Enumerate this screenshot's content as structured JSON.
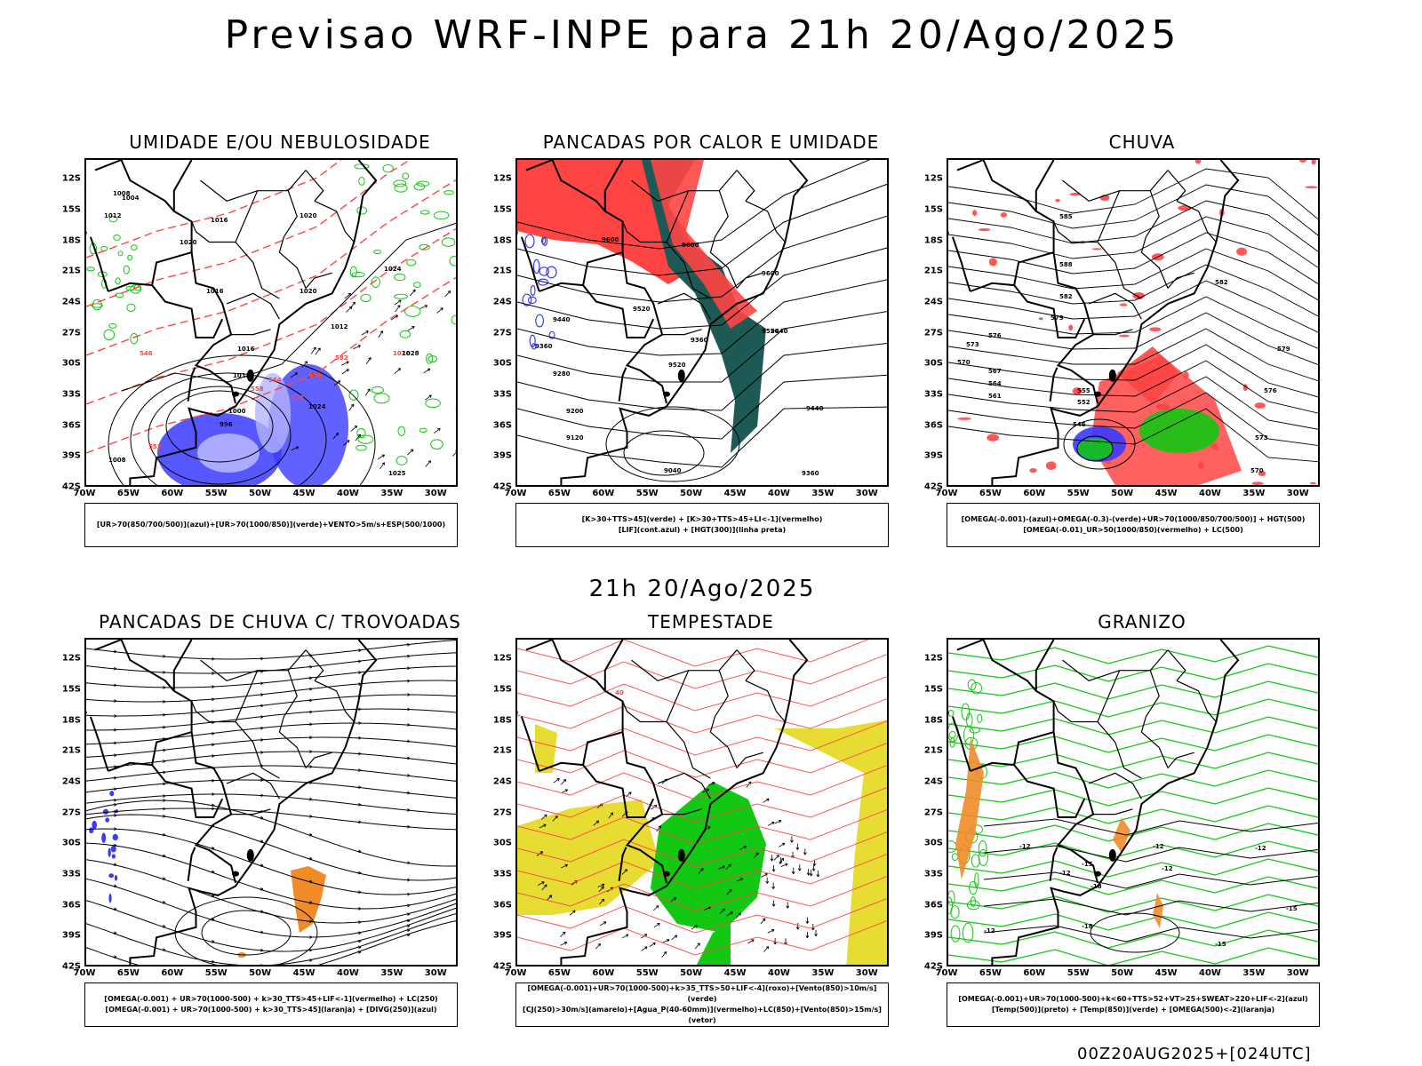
{
  "header": {
    "title": "Previsao WRF-INPE  para 21h 20/Ago/2025"
  },
  "mid_title": "21h 20/Ago/2025",
  "footer_stamp": "00Z20AUG2025+[024UTC]",
  "axes": {
    "lat_labels": [
      "12S",
      "15S",
      "18S",
      "21S",
      "24S",
      "27S",
      "30S",
      "33S",
      "36S",
      "39S",
      "42S"
    ],
    "lon_labels": [
      "70W",
      "65W",
      "60W",
      "55W",
      "50W",
      "45W",
      "40W",
      "35W",
      "30W"
    ]
  },
  "colors": {
    "red": "#ff4444",
    "blue": "#3a3aff",
    "green": "#12c812",
    "orange": "#f08c28",
    "yellow": "#e6dc32",
    "teal": "#1e5a55",
    "lightblue": "#b4b4ff"
  },
  "panels": [
    {
      "id": "umidade",
      "title": "UMIDADE E/OU NEBULOSIDADE",
      "legend": [
        "[UR>70(850/700/500)](azul)+[UR>70(1000/850)](verde)+VENTO>5m/s+ESP(500/1000)"
      ],
      "contour_labels": [
        "1008",
        "1012",
        "1016",
        "1020",
        "1020",
        "1024",
        "1016",
        "1020",
        "1012",
        "1012",
        "1000",
        "996",
        "1008",
        "1025",
        "1028",
        "582",
        "576",
        "570",
        "564",
        "558",
        "552",
        "546",
        "1004",
        "1016",
        "1024",
        "1028"
      ]
    },
    {
      "id": "pancadas-calor",
      "title": "PANCADAS POR CALOR E UMIDADE",
      "legend": [
        "[K>30+TTS>45](verde) + [K>30+TTS>45+LI<-1](vermelho)",
        "[LIF](cont.azul) + [HGT(300)](linha preta)"
      ],
      "contour_labels": [
        "9600",
        "9520",
        "9440",
        "9360",
        "9280",
        "9200",
        "9120",
        "9040",
        "9600",
        "9600",
        "9520",
        "9440",
        "9360",
        "9520",
        "9440",
        "9360"
      ]
    },
    {
      "id": "chuva",
      "title": "CHUVA",
      "legend": [
        "[OMEGA(-0.001)-(azul)+OMEGA(-0.3)-(verde)+UR>70(1000/850/700/500)] + HGT(500)",
        "[OMEGA(-0.01)_UR>50(1000/850)(vermelho) + LC(500)"
      ],
      "contour_labels": [
        "585",
        "588",
        "582",
        "579",
        "573",
        "570",
        "567",
        "564",
        "561",
        "555",
        "552",
        "546",
        "576",
        "579",
        "576",
        "573",
        "570",
        "582"
      ]
    },
    {
      "id": "pancadas-trovoadas",
      "title": "PANCADAS DE CHUVA C/ TROVOADAS",
      "legend": [
        "[OMEGA(-0.001) + UR>70(1000-500) + k>30_TTS>45+LIF<-1](vermelho) + LC(250)",
        "[OMEGA(-0.001) + UR>70(1000-500) + k>30_TTS>45](laranja) + [DIVG(250)](azul)"
      ],
      "contour_labels": []
    },
    {
      "id": "tempestade",
      "title": "TEMPESTADE",
      "legend": [
        "[OMEGA(-0.001)+UR>70(1000-500)+k>35_TTS>50+LIF<-4](roxo)+[Vento(850)>10m/s](verde)",
        "[CJ(250)>30m/s](amarelo)+[Agua_P(40-60mm)](vermelho)+LC(850)+[Vento(850)>15m/s](vetor)"
      ],
      "contour_labels": [
        "40"
      ]
    },
    {
      "id": "granizo",
      "title": "GRANIZO",
      "legend": [
        "[OMEGA(-0.001)+UR>70(1000-500)+k<60+TTS>52+VT>25+SWEAT>220+LIF<-2](azul)",
        "[Temp(500)](preto) + [Temp(850)](verde) + [OMEGA(500)<-2](laranja)"
      ],
      "contour_labels": [
        "-12",
        "-12",
        "-12",
        "-15",
        "-15",
        "-18",
        "-18",
        "-12",
        "-15",
        "-12",
        "-12"
      ]
    }
  ]
}
